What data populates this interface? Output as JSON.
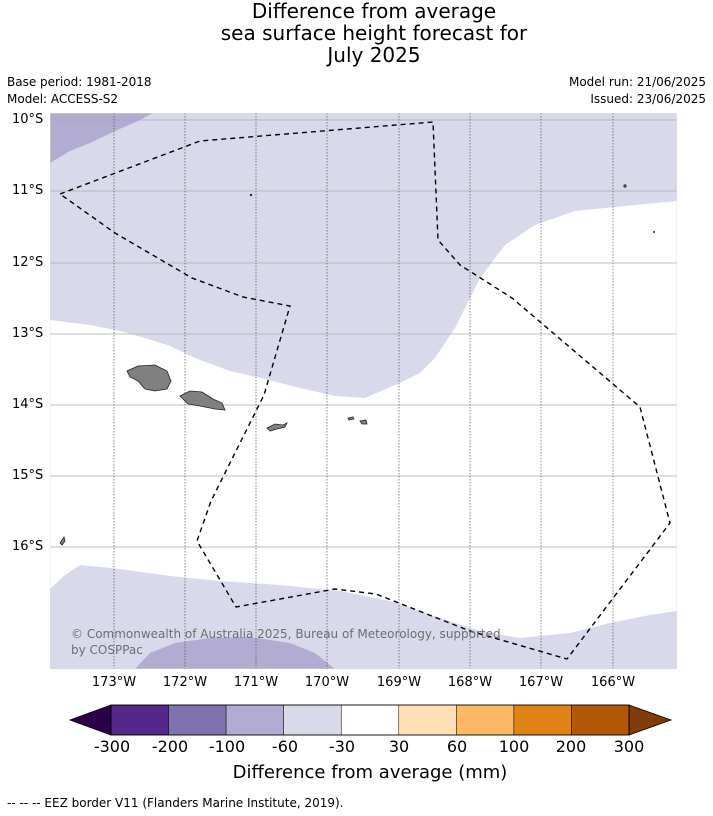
{
  "title": {
    "line1": "Difference from average",
    "line2": "sea surface height forecast for",
    "line3": "July 2025"
  },
  "meta": {
    "base_period": "Base period: 1981-2018",
    "model": "Model: ACCESS-S2",
    "model_run": "Model run: 21/06/2025",
    "issued": "Issued: 23/06/2025"
  },
  "map": {
    "lat_labels": [
      "10°S",
      "11°S",
      "12°S",
      "13°S",
      "14°S",
      "15°S",
      "16°S"
    ],
    "lon_labels": [
      "173°W",
      "172°W",
      "171°W",
      "170°W",
      "169°W",
      "168°W",
      "167°W",
      "166°W"
    ],
    "copyright": "© Commonwealth of Australia 2025, Bureau of Meteorology, supported by COSPPac",
    "region_colors": {
      "minus_60_to_minus_30": "#d8d9ea",
      "minus_100_to_minus_60": "#b2abd2",
      "land": "#808080",
      "eez_border": "#000000"
    }
  },
  "colorbar": {
    "title": "Difference from average (mm)",
    "tick_labels": [
      "-300",
      "-200",
      "-100",
      "-60",
      "-30",
      "30",
      "60",
      "100",
      "200",
      "300"
    ],
    "colors": [
      "#2d004b",
      "#542788",
      "#8073ac",
      "#b2abd2",
      "#d8daeb",
      "#ffffff",
      "#fee0b6",
      "#fdb863",
      "#e08214",
      "#b35806",
      "#7f3b08"
    ]
  },
  "footnote": "-- -- -- EEZ border V11 (Flanders Marine Institute, 2019)."
}
